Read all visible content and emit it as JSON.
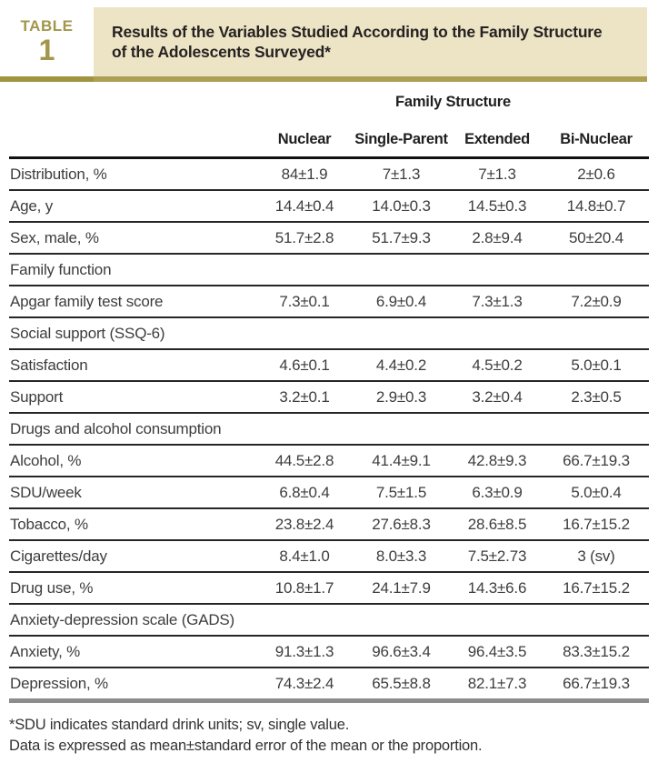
{
  "badge": {
    "label": "TABLE",
    "number": "1"
  },
  "title": {
    "line1": "Results of the Variables Studied According to the Family Structure",
    "line2": "of the Adolescents Surveyed*"
  },
  "table": {
    "group_header": "Family Structure",
    "columns": [
      "Nuclear",
      "Single-Parent",
      "Extended",
      "Bi-Nuclear"
    ],
    "rows": [
      {
        "label": "Distribution, %",
        "values": [
          "84±1.9",
          "7±1.3",
          "7±1.3",
          "2±0.6"
        ]
      },
      {
        "label": "Age, y",
        "values": [
          "14.4±0.4",
          "14.0±0.3",
          "14.5±0.3",
          "14.8±0.7"
        ]
      },
      {
        "label": "Sex, male, %",
        "values": [
          "51.7±2.8",
          "51.7±9.3",
          "2.8±9.4",
          "50±20.4"
        ]
      },
      {
        "label": "Family function",
        "section": true,
        "values": []
      },
      {
        "label": "Apgar family test score",
        "values": [
          "7.3±0.1",
          "6.9±0.4",
          "7.3±1.3",
          "7.2±0.9"
        ]
      },
      {
        "label": "Social support (SSQ-6)",
        "section": true,
        "values": []
      },
      {
        "label": "Satisfaction",
        "values": [
          "4.6±0.1",
          "4.4±0.2",
          "4.5±0.2",
          "5.0±0.1"
        ]
      },
      {
        "label": "Support",
        "values": [
          "3.2±0.1",
          "2.9±0.3",
          "3.2±0.4",
          "2.3±0.5"
        ]
      },
      {
        "label": "Drugs and alcohol consumption",
        "section": true,
        "values": []
      },
      {
        "label": "Alcohol, %",
        "values": [
          "44.5±2.8",
          "41.4±9.1",
          "42.8±9.3",
          "66.7±19.3"
        ]
      },
      {
        "label": "SDU/week",
        "values": [
          "6.8±0.4",
          "7.5±1.5",
          "6.3±0.9",
          "5.0±0.4"
        ]
      },
      {
        "label": "Tobacco, %",
        "values": [
          "23.8±2.4",
          "27.6±8.3",
          "28.6±8.5",
          "16.7±15.2"
        ]
      },
      {
        "label": "Cigarettes/day",
        "values": [
          "8.4±1.0",
          "8.0±3.3",
          "7.5±2.73",
          "3 (sv)"
        ]
      },
      {
        "label": "Drug use, %",
        "values": [
          "10.8±1.7",
          "24.1±7.9",
          "14.3±6.6",
          "16.7±15.2"
        ]
      },
      {
        "label": "Anxiety-depression scale (GADS)",
        "section": true,
        "values": []
      },
      {
        "label": "Anxiety, %",
        "values": [
          "91.3±1.3",
          "96.6±3.4",
          "96.4±3.5",
          "83.3±15.2"
        ]
      },
      {
        "label": "Depression, %",
        "values": [
          "74.3±2.4",
          "65.5±8.8",
          "82.1±7.3",
          "66.7±19.3"
        ]
      }
    ]
  },
  "footnotes": [
    "*SDU indicates standard drink units; sv, single value.",
    "Data is expressed as mean±standard error of the mean or the proportion."
  ],
  "colors": {
    "gold_text": "#a3964a",
    "gold_bar_left": "#a0943f",
    "gold_bar_right": "#ada052",
    "tan": "#ece4c4",
    "title_text": "#262222",
    "header_text": "#1f1f1f",
    "body_text": "#3d3d3d",
    "rule_header": "#111111",
    "rule_dark": "#262626",
    "rule_bottom": "#8c8c8c",
    "footnote_text": "#333333"
  }
}
